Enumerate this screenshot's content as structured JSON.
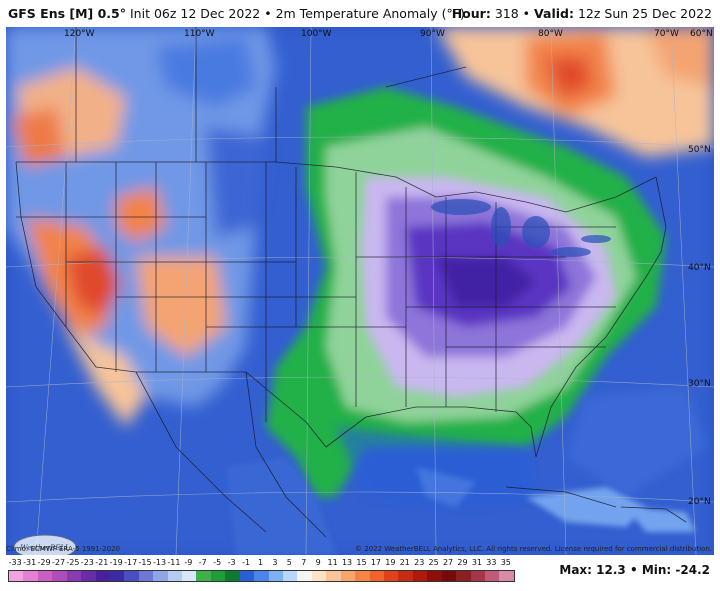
{
  "header": {
    "model": "GFS Ens [M] 0.5°",
    "init": "Init 06z 12 Dec 2022",
    "variable": "2m Temperature Anomaly (°F)",
    "hour_label": "Hour:",
    "hour_value": "318",
    "valid_label": "Valid:",
    "valid_value": "12z Sun 25 Dec 2022"
  },
  "map": {
    "lon_labels": [
      "120°W",
      "110°W",
      "100°W",
      "90°W",
      "80°W",
      "70°W",
      "60°N"
    ],
    "lat_labels": [
      "50°N",
      "40°N",
      "30°N",
      "20°N"
    ],
    "logo_text": "WeatherBELL"
  },
  "footer": {
    "climo": "Climo: ECMWF ERA-5 1991-2020",
    "copyright": "© 2022 WeatherBELL Analytics, LLC. All rights reserved. License required for commercial distribution.",
    "max_label": "Max:",
    "max_value": "12.3",
    "min_label": "Min:",
    "min_value": "-24.2"
  },
  "scale": {
    "ticks": [
      "-33",
      "-31",
      "-29",
      "-27",
      "-25",
      "-23",
      "-21",
      "-19",
      "-17",
      "-15",
      "-13",
      "-11",
      "-9",
      "-7",
      "-5",
      "-3",
      "-1",
      "1",
      "3",
      "5",
      "7",
      "9",
      "11",
      "13",
      "15",
      "17",
      "19",
      "21",
      "23",
      "25",
      "27",
      "29",
      "31",
      "33",
      "35"
    ],
    "colors": [
      "#f3a3e3",
      "#e57fd6",
      "#cc5cc6",
      "#b04bbb",
      "#8a3bb2",
      "#6a2ca8",
      "#4b1f9c",
      "#3a2aa6",
      "#4a4ec2",
      "#6d78d6",
      "#8ea6e6",
      "#b4cbf2",
      "#d6e8fa",
      "#3bb34a",
      "#1e9e3a",
      "#0d7a2d",
      "#2a5ed8",
      "#4a86ea",
      "#7fb0f4",
      "#b9d6fa",
      "#f4f4f4",
      "#fde2c8",
      "#fbc497",
      "#f9a46a",
      "#f58544",
      "#ef6428",
      "#e0431a",
      "#c92a12",
      "#ac1a0d",
      "#8c0f0c",
      "#7a0a0a",
      "#8c1f24",
      "#a8344a",
      "#c05a78",
      "#d98aa8"
    ]
  },
  "colors": {
    "ocean": "#2c54c8",
    "cold_core": "#5a36c2",
    "green_band": "#22b04a",
    "warm": "#f2834a",
    "hot": "#e04a2a"
  }
}
